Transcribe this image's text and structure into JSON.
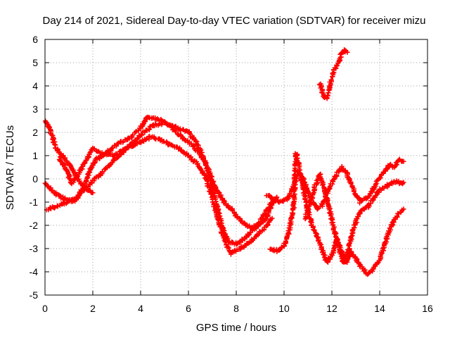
{
  "chart_data": {
    "type": "scatter",
    "title": "Day 214 of 2021, Sidereal Day-to-day VTEC variation (SDTVAR) for receiver mizu",
    "xlabel": "GPS time / hours",
    "ylabel": "SDTVAR / TECUs",
    "xlim": [
      0,
      16
    ],
    "ylim": [
      -5,
      6
    ],
    "xticks": [
      "0",
      "2",
      "4",
      "6",
      "8",
      "10",
      "12",
      "14",
      "16"
    ],
    "yticks": [
      "-5",
      "-4",
      "-3",
      "-2",
      "-1",
      "0",
      "1",
      "2",
      "3",
      "4",
      "5",
      "6"
    ],
    "grid": true,
    "marker": "plus",
    "color": "#ff0000",
    "series": [
      {
        "points": [
          [
            0.0,
            2.5
          ],
          [
            0.2,
            2.2
          ],
          [
            0.4,
            1.5
          ],
          [
            0.6,
            1.1
          ],
          [
            0.9,
            0.8
          ],
          [
            1.2,
            0.3
          ],
          [
            1.5,
            -0.2
          ],
          [
            1.8,
            -0.5
          ],
          [
            2.0,
            -0.6
          ]
        ]
      },
      {
        "points": [
          [
            0.0,
            -0.2
          ],
          [
            0.2,
            -0.4
          ],
          [
            0.4,
            -0.6
          ],
          [
            0.7,
            -0.8
          ],
          [
            1.0,
            -0.95
          ],
          [
            1.3,
            -0.85
          ],
          [
            1.5,
            -0.6
          ],
          [
            1.8,
            -0.3
          ],
          [
            2.0,
            -0.1
          ],
          [
            2.5,
            0.4
          ],
          [
            3.0,
            0.9
          ],
          [
            3.5,
            1.4
          ],
          [
            4.0,
            1.9
          ],
          [
            4.5,
            2.3
          ],
          [
            5.0,
            2.4
          ],
          [
            5.5,
            2.2
          ],
          [
            6.0,
            2.0
          ],
          [
            6.3,
            1.6
          ],
          [
            6.6,
            1.0
          ],
          [
            6.9,
            0.2
          ],
          [
            7.2,
            -0.5
          ],
          [
            7.5,
            -1.0
          ],
          [
            7.8,
            -1.3
          ],
          [
            8.0,
            -1.6
          ],
          [
            8.3,
            -1.9
          ],
          [
            8.6,
            -2.1
          ],
          [
            8.9,
            -2.0
          ],
          [
            9.2,
            -1.5
          ],
          [
            9.5,
            -1.0
          ],
          [
            9.7,
            -0.8
          ]
        ]
      },
      {
        "points": [
          [
            0.1,
            -1.3
          ],
          [
            0.4,
            -1.2
          ],
          [
            0.7,
            -1.1
          ],
          [
            1.0,
            -1.0
          ],
          [
            1.3,
            -0.9
          ],
          [
            1.6,
            -0.4
          ],
          [
            1.9,
            0.4
          ],
          [
            2.1,
            0.8
          ],
          [
            2.4,
            1.0
          ],
          [
            2.8,
            1.3
          ],
          [
            3.2,
            1.6
          ],
          [
            3.6,
            1.8
          ],
          [
            4.0,
            2.2
          ],
          [
            4.3,
            2.7
          ],
          [
            4.6,
            2.6
          ],
          [
            4.9,
            2.5
          ],
          [
            5.2,
            2.3
          ],
          [
            5.5,
            2.0
          ],
          [
            5.8,
            1.7
          ],
          [
            6.1,
            1.5
          ],
          [
            6.4,
            1.2
          ],
          [
            6.7,
            0.7
          ],
          [
            6.9,
            0.0
          ],
          [
            7.1,
            -0.8
          ],
          [
            7.3,
            -1.6
          ],
          [
            7.5,
            -2.3
          ],
          [
            7.7,
            -2.7
          ],
          [
            8.0,
            -2.8
          ],
          [
            8.3,
            -2.6
          ],
          [
            8.6,
            -2.3
          ],
          [
            8.9,
            -2.0
          ],
          [
            9.2,
            -1.8
          ],
          [
            9.4,
            -1.3
          ],
          [
            9.6,
            -0.9
          ]
        ]
      },
      {
        "points": [
          [
            0.6,
            0.9
          ],
          [
            0.9,
            0.4
          ],
          [
            1.1,
            -0.2
          ],
          [
            1.4,
            0.2
          ],
          [
            1.7,
            0.8
          ],
          [
            2.0,
            1.3
          ],
          [
            2.4,
            1.1
          ],
          [
            2.8,
            1.0
          ],
          [
            3.2,
            1.2
          ],
          [
            3.6,
            1.4
          ],
          [
            4.0,
            1.6
          ],
          [
            4.4,
            1.8
          ],
          [
            4.8,
            1.7
          ],
          [
            5.2,
            1.5
          ],
          [
            5.6,
            1.3
          ],
          [
            6.0,
            1.0
          ],
          [
            6.4,
            0.6
          ],
          [
            6.7,
            0.1
          ],
          [
            7.0,
            -0.8
          ],
          [
            7.2,
            -1.6
          ],
          [
            7.4,
            -2.3
          ],
          [
            7.6,
            -2.9
          ],
          [
            7.8,
            -3.2
          ],
          [
            8.0,
            -3.1
          ],
          [
            8.3,
            -2.9
          ],
          [
            8.6,
            -2.7
          ],
          [
            8.9,
            -2.4
          ],
          [
            9.2,
            -2.1
          ],
          [
            9.5,
            -1.7
          ]
        ]
      },
      {
        "points": [
          [
            9.3,
            -0.7
          ],
          [
            9.6,
            -0.9
          ],
          [
            9.9,
            -1.0
          ],
          [
            10.2,
            -0.8
          ],
          [
            10.4,
            -0.3
          ],
          [
            10.6,
            0.3
          ],
          [
            10.8,
            0.0
          ],
          [
            11.0,
            -0.6
          ],
          [
            11.2,
            -1.0
          ],
          [
            11.4,
            -1.3
          ],
          [
            11.6,
            -1.1
          ],
          [
            11.8,
            -0.6
          ],
          [
            12.0,
            -0.2
          ],
          [
            12.2,
            0.2
          ],
          [
            12.4,
            0.5
          ],
          [
            12.6,
            0.3
          ],
          [
            12.8,
            -0.2
          ],
          [
            13.0,
            -0.7
          ],
          [
            13.2,
            -1.0
          ],
          [
            13.5,
            -0.8
          ],
          [
            13.8,
            -0.3
          ],
          [
            14.1,
            0.2
          ],
          [
            14.4,
            0.6
          ],
          [
            14.6,
            0.5
          ],
          [
            14.8,
            0.8
          ],
          [
            15.0,
            0.75
          ]
        ]
      },
      {
        "points": [
          [
            9.4,
            -3.0
          ],
          [
            9.7,
            -3.1
          ],
          [
            10.0,
            -2.9
          ],
          [
            10.2,
            -2.3
          ],
          [
            10.4,
            -1.2
          ],
          [
            10.5,
            1.1
          ],
          [
            10.6,
            0.7
          ],
          [
            10.8,
            -0.4
          ],
          [
            11.0,
            -1.4
          ],
          [
            11.2,
            -2.1
          ],
          [
            11.4,
            -2.5
          ],
          [
            11.6,
            -3.1
          ],
          [
            11.8,
            -3.6
          ],
          [
            12.0,
            -3.3
          ],
          [
            12.2,
            -2.6
          ],
          [
            12.4,
            -3.1
          ],
          [
            12.6,
            -3.6
          ],
          [
            12.8,
            -3.1
          ],
          [
            13.0,
            -3.4
          ],
          [
            13.2,
            -3.8
          ],
          [
            13.5,
            -4.1
          ],
          [
            13.8,
            -3.8
          ],
          [
            14.0,
            -3.5
          ],
          [
            14.2,
            -2.9
          ],
          [
            14.4,
            -2.2
          ],
          [
            14.6,
            -1.8
          ],
          [
            14.8,
            -1.5
          ],
          [
            15.0,
            -1.3
          ]
        ]
      },
      {
        "points": [
          [
            10.9,
            -1.7
          ],
          [
            11.1,
            -1.0
          ],
          [
            11.3,
            -0.3
          ],
          [
            11.5,
            0.2
          ],
          [
            11.7,
            -0.5
          ],
          [
            11.9,
            -1.3
          ],
          [
            12.1,
            -2.2
          ],
          [
            12.3,
            -3.0
          ],
          [
            12.5,
            -3.6
          ],
          [
            12.7,
            -3.0
          ],
          [
            12.9,
            -2.2
          ],
          [
            13.1,
            -1.6
          ],
          [
            13.3,
            -1.3
          ],
          [
            13.5,
            -1.2
          ],
          [
            13.7,
            -0.9
          ],
          [
            13.9,
            -0.6
          ],
          [
            14.1,
            -0.4
          ],
          [
            14.3,
            -0.3
          ],
          [
            14.5,
            -0.2
          ],
          [
            14.7,
            -0.1
          ],
          [
            14.9,
            -0.2
          ],
          [
            15.0,
            -0.15
          ]
        ]
      },
      {
        "points": [
          [
            11.5,
            4.1
          ],
          [
            11.6,
            3.7
          ],
          [
            11.7,
            3.5
          ],
          [
            11.8,
            3.5
          ],
          [
            11.9,
            3.9
          ],
          [
            12.0,
            4.4
          ],
          [
            12.1,
            4.7
          ],
          [
            12.2,
            4.9
          ],
          [
            12.3,
            5.1
          ],
          [
            12.4,
            5.4
          ],
          [
            12.5,
            5.55
          ],
          [
            12.65,
            5.45
          ]
        ]
      }
    ]
  }
}
